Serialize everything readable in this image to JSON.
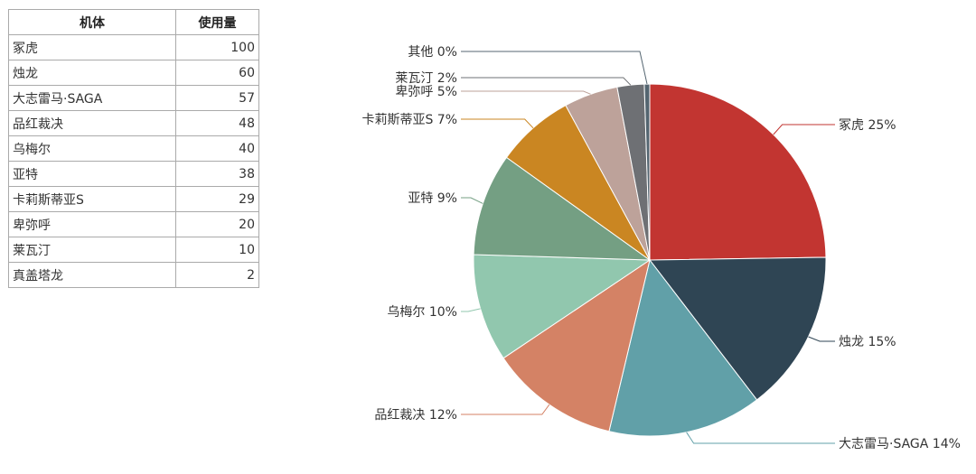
{
  "table": {
    "headers": {
      "name": "机体",
      "value": "使用量"
    },
    "rows": [
      {
        "name": "冢虎",
        "value": "100"
      },
      {
        "name": "烛龙",
        "value": "60"
      },
      {
        "name": "大志雷马·SAGA",
        "value": "57"
      },
      {
        "name": "品红裁决",
        "value": "48"
      },
      {
        "name": "乌梅尔",
        "value": "40"
      },
      {
        "name": "亚特",
        "value": "38"
      },
      {
        "name": "卡莉斯蒂亚S",
        "value": "29"
      },
      {
        "name": "卑弥呼",
        "value": "20"
      },
      {
        "name": "莱瓦汀",
        "value": "10"
      },
      {
        "name": "真盖塔龙",
        "value": "2"
      }
    ]
  },
  "chart_data": {
    "type": "pie",
    "title": "",
    "slices": [
      {
        "name": "冢虎",
        "value": 100,
        "label": "冢虎 25%",
        "color": "#c23531"
      },
      {
        "name": "烛龙",
        "value": 60,
        "label": "烛龙 15%",
        "color": "#2f4554"
      },
      {
        "name": "大志雷马·SAGA",
        "value": 57,
        "label": "大志雷马·SAGA 14%",
        "color": "#61a0a8"
      },
      {
        "name": "品红裁决",
        "value": 48,
        "label": "品红裁决 12%",
        "color": "#d48265"
      },
      {
        "name": "乌梅尔",
        "value": 40,
        "label": "乌梅尔 10%",
        "color": "#91c7ae"
      },
      {
        "name": "亚特",
        "value": 38,
        "label": "亚特 9%",
        "color": "#749f83"
      },
      {
        "name": "卡莉斯蒂亚S",
        "value": 29,
        "label": "卡莉斯蒂亚S 7%",
        "color": "#ca8622"
      },
      {
        "name": "卑弥呼",
        "value": 20,
        "label": "卑弥呼 5%",
        "color": "#bda29a"
      },
      {
        "name": "莱瓦汀",
        "value": 10,
        "label": "莱瓦汀 2%",
        "color": "#6e7074"
      },
      {
        "name": "其他",
        "value": 2,
        "label": "其他 0%",
        "color": "#546570"
      }
    ]
  }
}
